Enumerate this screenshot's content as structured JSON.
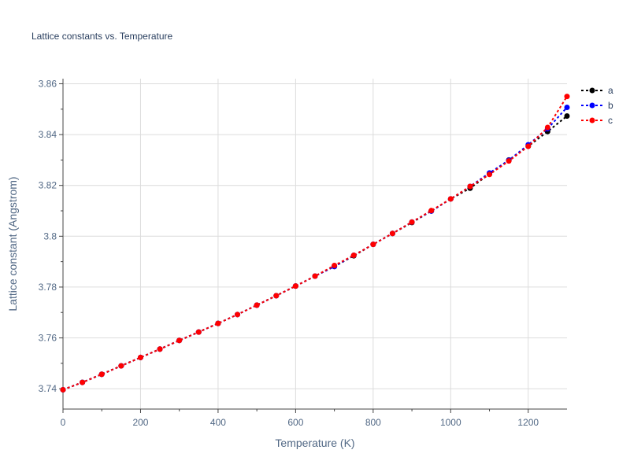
{
  "chart_data": {
    "type": "line",
    "title": "Lattice constants vs. Temperature",
    "xlabel": "Temperature (K)",
    "ylabel": "Lattice constant (Angstrom)",
    "xlim": [
      0,
      1300
    ],
    "ylim": [
      3.732,
      3.862
    ],
    "xticks": [
      0,
      200,
      400,
      600,
      800,
      1000,
      1200
    ],
    "xtick_labels": [
      "0",
      "200",
      "400",
      "600",
      "800",
      "1000",
      "1200"
    ],
    "yticks": [
      3.74,
      3.76,
      3.78,
      3.8,
      3.82,
      3.84,
      3.86
    ],
    "ytick_labels": [
      "3.74",
      "3.76",
      "3.78",
      "3.8",
      "3.82",
      "3.84",
      "3.86"
    ],
    "grid": true,
    "legend_position": "top-right",
    "x": [
      0,
      50,
      100,
      150,
      200,
      250,
      300,
      350,
      400,
      450,
      500,
      550,
      600,
      650,
      700,
      750,
      800,
      850,
      900,
      950,
      1000,
      1050,
      1100,
      1150,
      1200,
      1250,
      1300
    ],
    "series": [
      {
        "name": "a",
        "color": "#000000",
        "values": [
          3.7396,
          3.7425,
          3.7457,
          3.749,
          3.7523,
          3.7556,
          3.759,
          3.7623,
          3.7657,
          3.7692,
          3.7729,
          3.7766,
          3.7804,
          3.7843,
          3.7881,
          3.7923,
          3.7968,
          3.8011,
          3.8054,
          3.8099,
          3.8147,
          3.8189,
          3.8245,
          3.83,
          3.8354,
          3.8412,
          3.8473
        ]
      },
      {
        "name": "b",
        "color": "#0000ff",
        "values": [
          3.7396,
          3.7425,
          3.7457,
          3.749,
          3.7523,
          3.7556,
          3.759,
          3.7623,
          3.7657,
          3.7692,
          3.7729,
          3.7766,
          3.7804,
          3.7843,
          3.7881,
          3.7925,
          3.7968,
          3.8011,
          3.8056,
          3.8099,
          3.8147,
          3.8196,
          3.8249,
          3.8299,
          3.836,
          3.8423,
          3.8507
        ]
      },
      {
        "name": "c",
        "color": "#ff0000",
        "values": [
          3.7396,
          3.7425,
          3.7457,
          3.749,
          3.7523,
          3.7556,
          3.759,
          3.7623,
          3.7657,
          3.7692,
          3.7729,
          3.7766,
          3.7804,
          3.7843,
          3.7885,
          3.7925,
          3.7968,
          3.8011,
          3.8056,
          3.8101,
          3.8147,
          3.8196,
          3.8243,
          3.8296,
          3.8354,
          3.8428,
          3.855
        ]
      }
    ]
  }
}
